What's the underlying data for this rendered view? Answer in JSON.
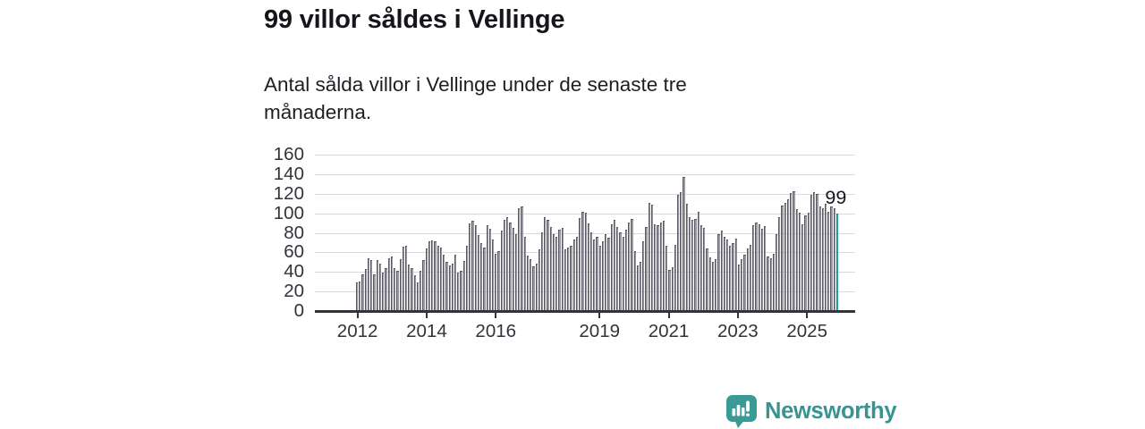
{
  "title": "99 villor såldes i Vellinge",
  "subtitle": "Antal sålda villor i Vellinge under de senaste tre månaderna.",
  "branding": {
    "name": "Newsworthy",
    "wordmark_color": "#389491",
    "icon": "newsworthy-speech-bubble-bar-chart-icon",
    "icon_color": "#3a9a96"
  },
  "chart_data": {
    "type": "bar",
    "title": "",
    "xlabel": "",
    "ylabel": "",
    "x_unit": "month",
    "x_start": "2012-01",
    "x_end": "2025-11",
    "ylim": [
      0,
      160
    ],
    "yticks": [
      0,
      20,
      40,
      60,
      80,
      100,
      120,
      140,
      160
    ],
    "xticks": [
      {
        "label": "2012",
        "month_index": 0
      },
      {
        "label": "2014",
        "month_index": 24
      },
      {
        "label": "2016",
        "month_index": 48
      },
      {
        "label": "2019",
        "month_index": 84
      },
      {
        "label": "2021",
        "month_index": 108
      },
      {
        "label": "2023",
        "month_index": 132
      },
      {
        "label": "2025",
        "month_index": 156
      }
    ],
    "grid": true,
    "bar_color": "#9a9aa2",
    "bar_edge_color": "#585862",
    "values": [
      28,
      29,
      37,
      42,
      53,
      51,
      37,
      51,
      48,
      38,
      43,
      53,
      55,
      43,
      40,
      52,
      65,
      66,
      47,
      43,
      36,
      28,
      40,
      51,
      63,
      70,
      71,
      70,
      66,
      64,
      57,
      49,
      46,
      48,
      57,
      38,
      40,
      50,
      66,
      89,
      91,
      87,
      77,
      69,
      64,
      87,
      83,
      72,
      58,
      60,
      81,
      92,
      95,
      90,
      84,
      78,
      104,
      106,
      75,
      56,
      52,
      45,
      48,
      62,
      80,
      95,
      92,
      85,
      78,
      75,
      82,
      84,
      62,
      64,
      66,
      72,
      75,
      94,
      101,
      100,
      89,
      80,
      72,
      75,
      66,
      70,
      78,
      74,
      88,
      92,
      85,
      80,
      75,
      82,
      90,
      93,
      60,
      46,
      49,
      70,
      85,
      110,
      108,
      88,
      87,
      90,
      91,
      66,
      41,
      44,
      67,
      118,
      121,
      136,
      109,
      95,
      92,
      93,
      101,
      87,
      84,
      63,
      54,
      49,
      52,
      78,
      81,
      75,
      72,
      66,
      69,
      73,
      47,
      52,
      57,
      63,
      67,
      87,
      90,
      88,
      83,
      86,
      55,
      53,
      58,
      78,
      95,
      107,
      110,
      113,
      120,
      122,
      103,
      100,
      88,
      97,
      100,
      118,
      121,
      119,
      106,
      104,
      109,
      101,
      106,
      104,
      99
    ],
    "highlight": {
      "index": 166,
      "value": 99,
      "label": "99",
      "color": "#25b2ae"
    }
  }
}
